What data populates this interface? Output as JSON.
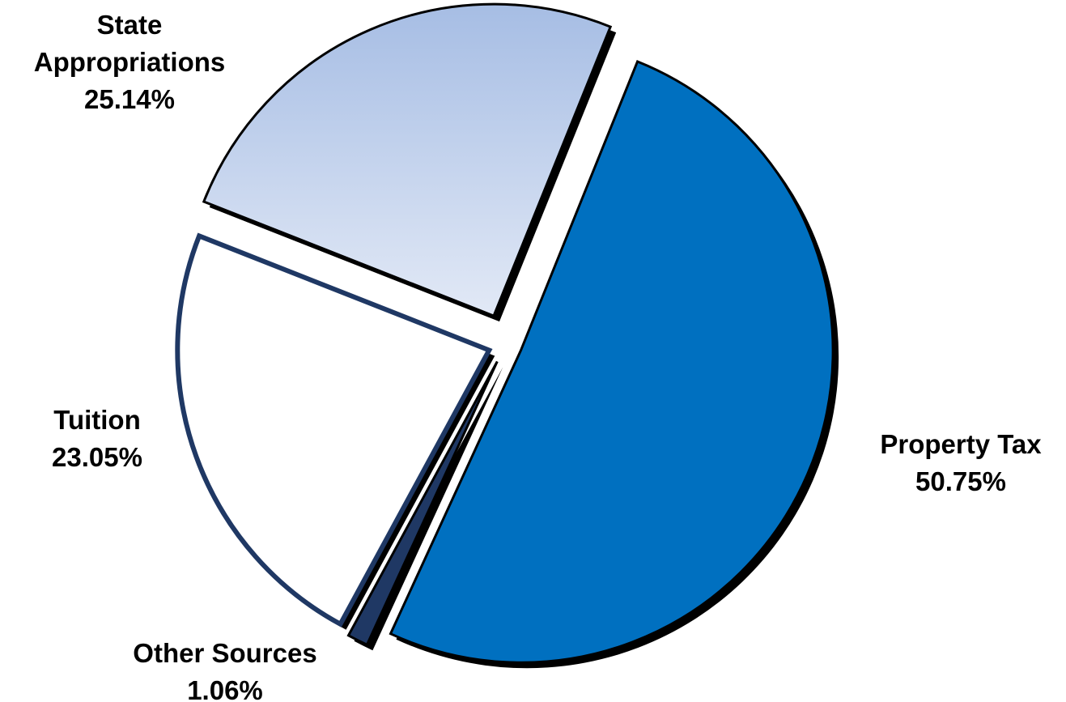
{
  "chart_data": {
    "type": "pie",
    "title": "",
    "categories": [
      "Property Tax",
      "Other Sources",
      "Tuition",
      "State Appropriations"
    ],
    "values": [
      50.75,
      1.06,
      23.05,
      25.14
    ],
    "value_labels": [
      "50.75%",
      "1.06%",
      "23.05%",
      "25.14%"
    ],
    "label_lines": [
      [
        "Property Tax",
        "50.75%"
      ],
      [
        "Other Sources",
        "1.06%"
      ],
      [
        "Tuition",
        "23.05%"
      ],
      [
        "State",
        "Appropriations",
        "25.14%"
      ]
    ],
    "colors": [
      "#0070C0",
      "#1F3864",
      "#FFFFFF",
      "#A6BDE4"
    ],
    "edge_colors": [
      "#000000",
      "#000000",
      "#1F3864",
      "#000000"
    ],
    "gradient_end": "#E2E9F6",
    "exploded": true,
    "legend": "none",
    "start_angle_deg": 22,
    "direction": "clockwise"
  }
}
